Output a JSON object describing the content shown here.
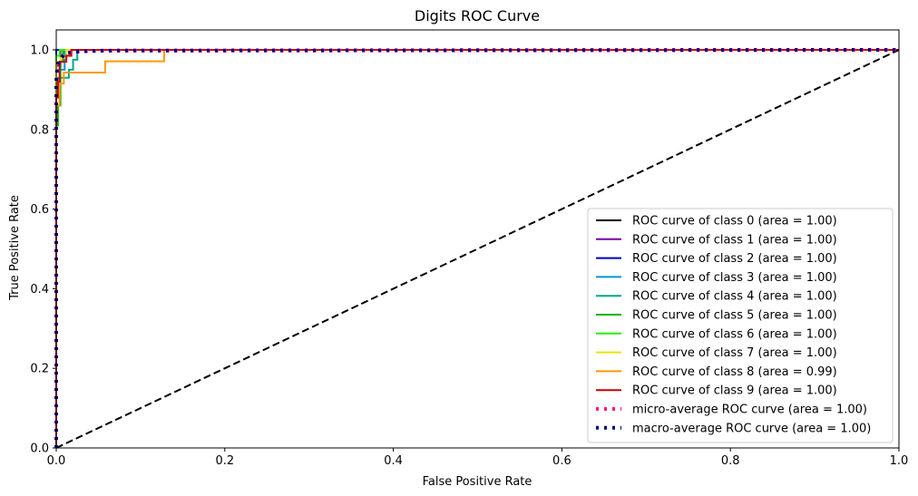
{
  "chart_data": {
    "type": "line",
    "title": "Digits ROC Curve",
    "xlabel": "False Positive Rate",
    "ylabel": "True Positive Rate",
    "xlim": [
      0.0,
      1.0
    ],
    "ylim": [
      0.0,
      1.05
    ],
    "xticks": [
      "0.0",
      "0.2",
      "0.4",
      "0.6",
      "0.8",
      "1.0"
    ],
    "yticks": [
      "0.0",
      "0.2",
      "0.4",
      "0.6",
      "0.8",
      "1.0"
    ],
    "grid": false,
    "legend_position": "lower-right",
    "series": [
      {
        "name": "ROC curve of class 0 (area = 1.00)",
        "color": "#000000",
        "style": "solid",
        "x": [
          0.0,
          0.0,
          1.0
        ],
        "y": [
          0.0,
          1.0,
          1.0
        ]
      },
      {
        "name": "ROC curve of class 1 (area = 1.00)",
        "color": "#7f00a6",
        "style": "solid",
        "x": [
          0.0,
          0.0,
          0.005,
          0.005,
          1.0
        ],
        "y": [
          0.0,
          0.96,
          0.96,
          1.0,
          1.0
        ]
      },
      {
        "name": "ROC curve of class 2 (area = 1.00)",
        "color": "#0000c8",
        "style": "solid",
        "x": [
          0.0,
          0.0,
          1.0
        ],
        "y": [
          0.0,
          1.0,
          1.0
        ]
      },
      {
        "name": "ROC curve of class 3 (area = 1.00)",
        "color": "#0097d6",
        "style": "solid",
        "x": [
          0.0,
          0.0,
          0.01,
          0.01,
          1.0
        ],
        "y": [
          0.0,
          0.95,
          0.95,
          1.0,
          1.0
        ]
      },
      {
        "name": "ROC curve of class 4 (area = 1.00)",
        "color": "#00a88a",
        "style": "solid",
        "x": [
          0.0,
          0.0,
          0.015,
          0.015,
          0.02,
          0.02,
          0.025,
          0.025,
          1.0
        ],
        "y": [
          0.0,
          0.93,
          0.93,
          0.95,
          0.95,
          0.975,
          0.975,
          1.0,
          1.0
        ]
      },
      {
        "name": "ROC curve of class 5 (area = 1.00)",
        "color": "#00b400",
        "style": "solid",
        "x": [
          0.0,
          0.0,
          0.002,
          0.002,
          0.005,
          0.005,
          0.008,
          0.008,
          1.0
        ],
        "y": [
          0.0,
          0.81,
          0.81,
          0.86,
          0.86,
          0.97,
          0.97,
          1.0,
          1.0
        ]
      },
      {
        "name": "ROC curve of class 6 (area = 1.00)",
        "color": "#22f000",
        "style": "solid",
        "x": [
          0.0,
          0.0,
          0.004,
          0.004,
          1.0
        ],
        "y": [
          0.0,
          0.985,
          0.985,
          1.0,
          1.0
        ]
      },
      {
        "name": "ROC curve of class 7 (area = 1.00)",
        "color": "#e6e600",
        "style": "solid",
        "x": [
          0.0,
          0.0,
          0.005,
          0.005,
          0.012,
          0.012,
          0.018,
          0.018,
          1.0
        ],
        "y": [
          0.0,
          0.97,
          0.97,
          0.98,
          0.98,
          1.0,
          1.0,
          1.0,
          1.0
        ]
      },
      {
        "name": "ROC curve of class 8 (area = 0.99)",
        "color": "#ff9900",
        "style": "solid",
        "x": [
          0.0,
          0.0,
          0.004,
          0.004,
          0.009,
          0.009,
          0.058,
          0.058,
          0.128,
          0.128,
          1.0
        ],
        "y": [
          0.0,
          0.86,
          0.86,
          0.915,
          0.915,
          0.943,
          0.943,
          0.971,
          0.971,
          1.0,
          1.0
        ]
      },
      {
        "name": "ROC curve of class 9 (area = 1.00)",
        "color": "#cc0000",
        "style": "solid",
        "x": [
          0.0,
          0.0,
          0.002,
          0.002,
          0.004,
          0.004,
          0.012,
          0.012,
          0.018,
          0.018,
          1.0
        ],
        "y": [
          0.0,
          0.88,
          0.88,
          0.92,
          0.92,
          0.97,
          0.97,
          0.985,
          0.985,
          1.0,
          1.0
        ]
      },
      {
        "name": "micro-average ROC curve (area = 1.00)",
        "color": "#ff1493",
        "style": "dotted",
        "x": [
          0.0,
          0.0,
          0.001,
          0.003,
          0.006,
          0.01,
          0.02,
          0.05,
          1.0
        ],
        "y": [
          0.0,
          0.9,
          0.94,
          0.965,
          0.98,
          0.988,
          0.995,
          0.998,
          1.0
        ]
      },
      {
        "name": "macro-average ROC curve (area = 1.00)",
        "color": "#000080",
        "style": "dotted",
        "x": [
          0.0,
          0.0,
          0.001,
          0.003,
          0.006,
          0.01,
          0.02,
          0.05,
          1.0
        ],
        "y": [
          0.0,
          0.92,
          0.95,
          0.97,
          0.98,
          0.99,
          0.995,
          0.998,
          1.0
        ]
      },
      {
        "name": "",
        "color": "#000000",
        "style": "dashed",
        "x": [
          0.0,
          1.0
        ],
        "y": [
          0.0,
          1.0
        ]
      }
    ]
  }
}
